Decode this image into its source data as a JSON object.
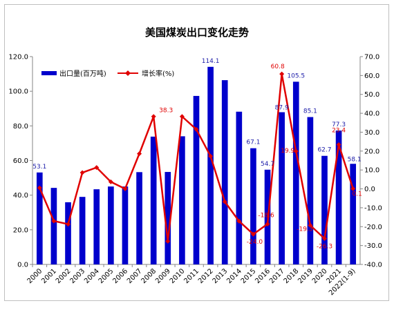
{
  "chart_data": {
    "type": "bar",
    "title": "美国煤炭出口变化走势",
    "categories": [
      "2000",
      "2001",
      "2002",
      "2003",
      "2004",
      "2005",
      "2006",
      "2007",
      "2008",
      "2009",
      "2010",
      "2011",
      "2012",
      "2013",
      "2014",
      "2015",
      "2016",
      "2017",
      "2018",
      "2019",
      "2020",
      "2021",
      "2022(1-9)"
    ],
    "series": [
      {
        "name": "出口量(百万吨)",
        "type": "bar",
        "axis": "left",
        "color": "#0000cc",
        "values": [
          53.1,
          44.2,
          35.9,
          39.0,
          43.4,
          45.0,
          45.0,
          53.3,
          73.8,
          53.4,
          74.0,
          97.3,
          114.1,
          106.4,
          88.2,
          67.1,
          54.7,
          87.9,
          105.5,
          85.1,
          62.7,
          77.3,
          58.1
        ],
        "labels": {
          "2000": "53.1",
          "2012": "114.1",
          "2015": "67.1",
          "2016": "54.7",
          "2017": "87.9",
          "2018": "105.5",
          "2019": "85.1",
          "2020": "62.7",
          "2021": "77.3",
          "2022(1-9)": "58.1"
        }
      },
      {
        "name": "增长率(%)",
        "type": "line",
        "axis": "right",
        "color": "#e00000",
        "values": [
          0.5,
          -17.0,
          -18.7,
          8.6,
          11.3,
          3.7,
          0.0,
          18.6,
          38.3,
          -27.7,
          38.3,
          31.5,
          17.3,
          -6.8,
          -17.1,
          -24.0,
          -18.6,
          60.8,
          19.9,
          -19.3,
          -26.3,
          23.4,
          0.1
        ],
        "labels": {
          "2008": "38.3",
          "2015": "-24.0",
          "2016": "-18.6",
          "2017": "60.8",
          "2018": "19.9",
          "2019": "-19.3",
          "2020": "-26.3",
          "2021": "23.4",
          "2022(1-9)": "0.1"
        }
      }
    ],
    "ylim_left": [
      0,
      120
    ],
    "yticks_left": [
      "0.0",
      "20.0",
      "40.0",
      "60.0",
      "80.0",
      "100.0",
      "120.0"
    ],
    "ylim_right": [
      -40,
      70
    ],
    "yticks_right": [
      "-40.0",
      "-30.0",
      "-20.0",
      "-10.0",
      "0.0",
      "10.0",
      "20.0",
      "30.0",
      "40.0",
      "50.0",
      "60.0",
      "70.0"
    ],
    "xlabel": "",
    "ylabel": "",
    "grid": false,
    "legend": "top-left"
  }
}
